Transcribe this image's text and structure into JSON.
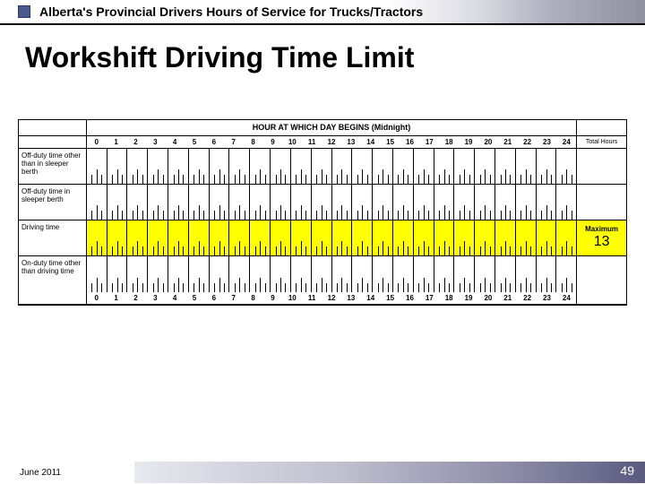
{
  "header": {
    "block_color": "#4a5a8a",
    "text": "Alberta's Provincial Drivers Hours of Service for Trucks/Tractors"
  },
  "title": "Workshift Driving Time Limit",
  "logsheet": {
    "top_heading": "HOUR AT WHICH DAY BEGINS (Midnight)",
    "hours": [
      "0",
      "1",
      "2",
      "3",
      "4",
      "5",
      "6",
      "7",
      "8",
      "9",
      "10",
      "11",
      "12",
      "13",
      "14",
      "15",
      "16",
      "17",
      "18",
      "19",
      "20",
      "21",
      "22",
      "23",
      "24"
    ],
    "hours_right_label": "Total Hours",
    "rows": [
      {
        "label": "Off-duty time other than in sleeper berth",
        "highlight": false,
        "right": ""
      },
      {
        "label": "Off-duty time in sleeper berth",
        "highlight": false,
        "right": ""
      },
      {
        "label": "Driving time",
        "highlight": true,
        "right_top": "Maximum",
        "right_bottom": "13"
      },
      {
        "label": "On-duty time other than driving time",
        "highlight": false,
        "right": ""
      }
    ],
    "colors": {
      "highlight": "#ffff00",
      "border": "#000000",
      "bg": "#ffffff"
    }
  },
  "footer": {
    "date": "June 2011",
    "page_number": "49"
  }
}
